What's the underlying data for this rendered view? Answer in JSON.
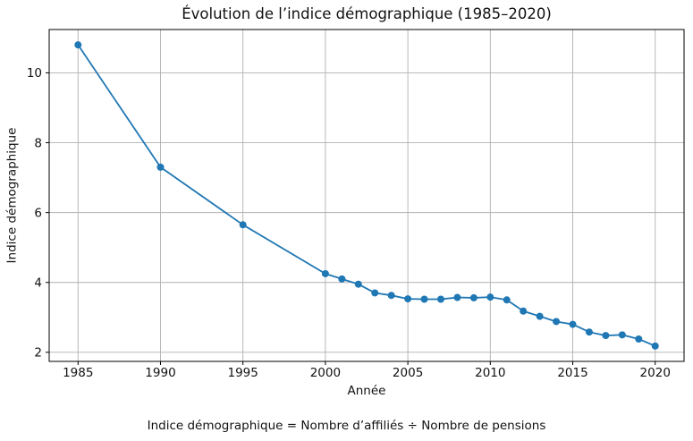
{
  "figure": {
    "background": "#ffffff"
  },
  "chart_data": {
    "type": "line",
    "title": "Évolution de l’indice démographique (1985–2020)",
    "xlabel": "Année",
    "ylabel": "Indice démographique",
    "caption": "Indice démographique = Nombre d’affiliés ÷ Nombre de pensions",
    "series": [
      {
        "name": "Indice démographique",
        "x": [
          1985,
          1990,
          1995,
          2000,
          2001,
          2002,
          2003,
          2004,
          2005,
          2006,
          2007,
          2008,
          2009,
          2010,
          2011,
          2012,
          2013,
          2014,
          2015,
          2016,
          2017,
          2018,
          2019,
          2020
        ],
        "y": [
          10.8,
          7.3,
          5.65,
          4.25,
          4.1,
          3.95,
          3.7,
          3.63,
          3.53,
          3.52,
          3.52,
          3.57,
          3.56,
          3.58,
          3.5,
          3.18,
          3.03,
          2.88,
          2.8,
          2.58,
          2.48,
          2.5,
          2.38,
          2.18
        ]
      }
    ],
    "xlim": [
      1983.25,
      2021.75
    ],
    "ylim": [
      1.74,
      11.24
    ],
    "xticks": [
      1985,
      1990,
      1995,
      2000,
      2005,
      2010,
      2015,
      2020
    ],
    "yticks": [
      2,
      4,
      6,
      8,
      10
    ],
    "grid": true,
    "legend_position": "none",
    "line_color": "#1f77b4",
    "marker": "o",
    "marker_color": "#1f77b4",
    "grid_color": "#b0b0b0",
    "spine_color": "#000000",
    "text_color": "#111111"
  }
}
